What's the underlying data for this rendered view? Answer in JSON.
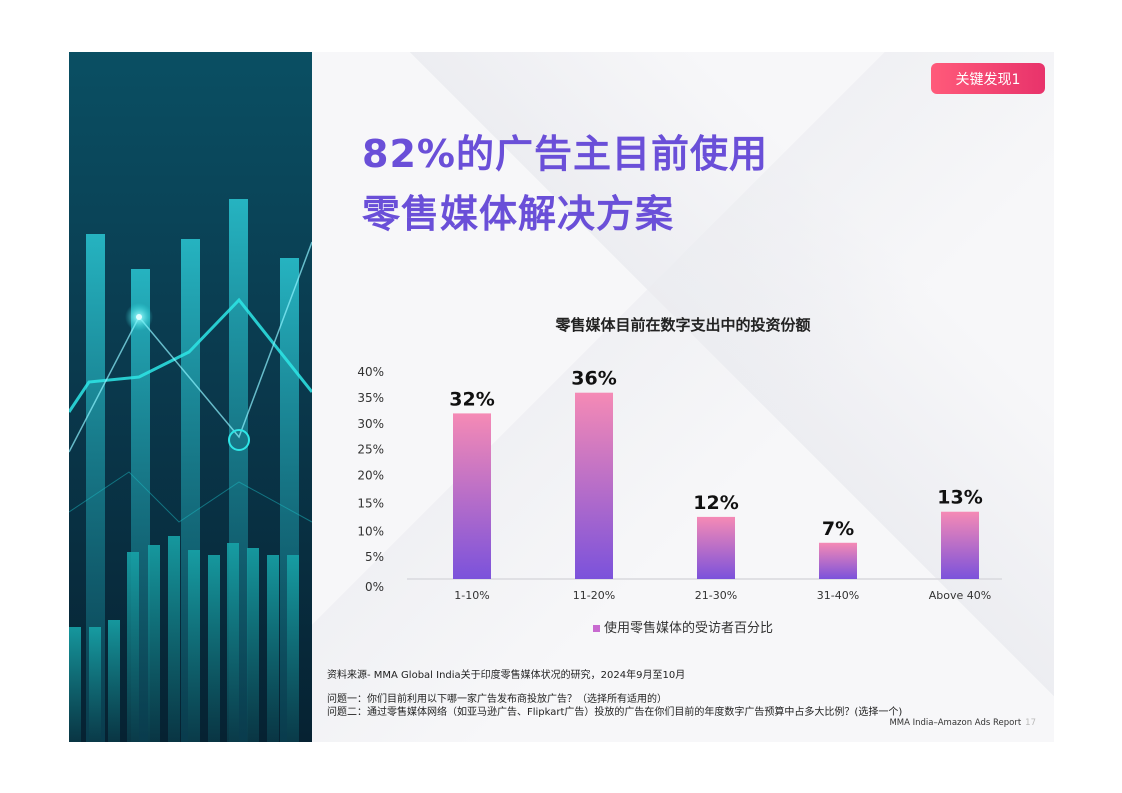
{
  "badge": "关键发现1",
  "title": {
    "line1": "82%的广告主目前使用",
    "line2": "零售媒体解决方案"
  },
  "chart_data": {
    "type": "bar",
    "title": "零售媒体目前在数字支出中的投资份额",
    "categories": [
      "1-10%",
      "11-20%",
      "21-30%",
      "31-40%",
      "Above 40%"
    ],
    "values": [
      32,
      36,
      12,
      7,
      13
    ],
    "data_labels": [
      "32%",
      "36%",
      "12%",
      "7%",
      "13%"
    ],
    "y_ticks": [
      "0%",
      "5%",
      "10%",
      "15%",
      "20%",
      "25%",
      "30%",
      "35%",
      "40%"
    ],
    "ylim": [
      0,
      40
    ],
    "series": [
      {
        "name": "使用零售媒体的受访者百分比",
        "values": [
          32,
          36,
          12,
          7,
          13
        ]
      }
    ],
    "legend": "bottom",
    "grid": false,
    "bar_gradient": {
      "top": "#f58ab5",
      "bottom": "#7b52db"
    }
  },
  "source": "资料来源- MMA Global India关于印度零售媒体状况的研究，2024年9月至10月",
  "question1": "问题一：你们目前利用以下哪一家广告发布商投放广告？（选择所有适用的）",
  "question2": "问题二：通过零售媒体网络（如亚马逊广告、Flipkart广告）投放的广告在你们目前的年度数字广告预算中占多大比例？(选择一个)",
  "footer": {
    "report": "MMA India–Amazon Ads Report",
    "page": "17"
  },
  "colors": {
    "title": "#6a4fd8",
    "badge": "#ee3d6e",
    "panel": "#0a3f52",
    "accent": "#2ee6e6"
  }
}
